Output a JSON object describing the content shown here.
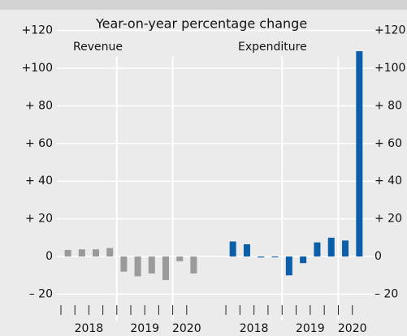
{
  "title": "Year-on-year percentage change",
  "chart_data": [
    {
      "type": "bar",
      "subtitle": "Revenue",
      "color": "#9a9a9a",
      "categories": [
        null,
        null,
        null,
        null,
        null,
        null,
        null,
        null,
        null,
        null
      ],
      "groups": [
        {
          "label": "2018",
          "size": 4
        },
        {
          "label": "2019",
          "size": 4
        },
        {
          "label": "2020",
          "size": 2
        }
      ],
      "values": [
        3.5,
        3.8,
        3.8,
        4.5,
        -8,
        -10.5,
        -9,
        -12.5,
        -2.5,
        -9
      ],
      "ylim": [
        -34,
        131
      ],
      "yticks": [
        {
          "value": 120,
          "label": "+120"
        },
        {
          "value": 100,
          "label": "+100"
        },
        {
          "value": 80,
          "label": "+ 80"
        },
        {
          "value": 60,
          "label": "+ 60"
        },
        {
          "value": 40,
          "label": "+ 40"
        },
        {
          "value": 20,
          "label": "+ 20"
        },
        0,
        {
          "value": -20,
          "label": "– 20"
        }
      ],
      "grid": true
    },
    {
      "type": "bar",
      "subtitle": "Expenditure",
      "color": "#0b5ea8",
      "categories": [
        null,
        null,
        null,
        null,
        null,
        null,
        null,
        null,
        null,
        null
      ],
      "groups": [
        {
          "label": "2018",
          "size": 4
        },
        {
          "label": "2019",
          "size": 4
        },
        {
          "label": "2020",
          "size": 2
        }
      ],
      "values": [
        8,
        6.5,
        -0.5,
        -0.3,
        -10,
        -3.5,
        7.5,
        10,
        8.5,
        109
      ],
      "ylim": [
        -34,
        131
      ],
      "yticks": [
        {
          "value": 120,
          "label": "+120"
        },
        {
          "value": 100,
          "label": "+100"
        },
        {
          "value": 80,
          "label": "+ 80"
        },
        {
          "value": 60,
          "label": "+ 60"
        },
        {
          "value": 40,
          "label": "+ 40"
        },
        {
          "value": 20,
          "label": "+ 20"
        },
        0,
        {
          "value": -20,
          "label": "– 20"
        }
      ],
      "grid": true
    }
  ]
}
